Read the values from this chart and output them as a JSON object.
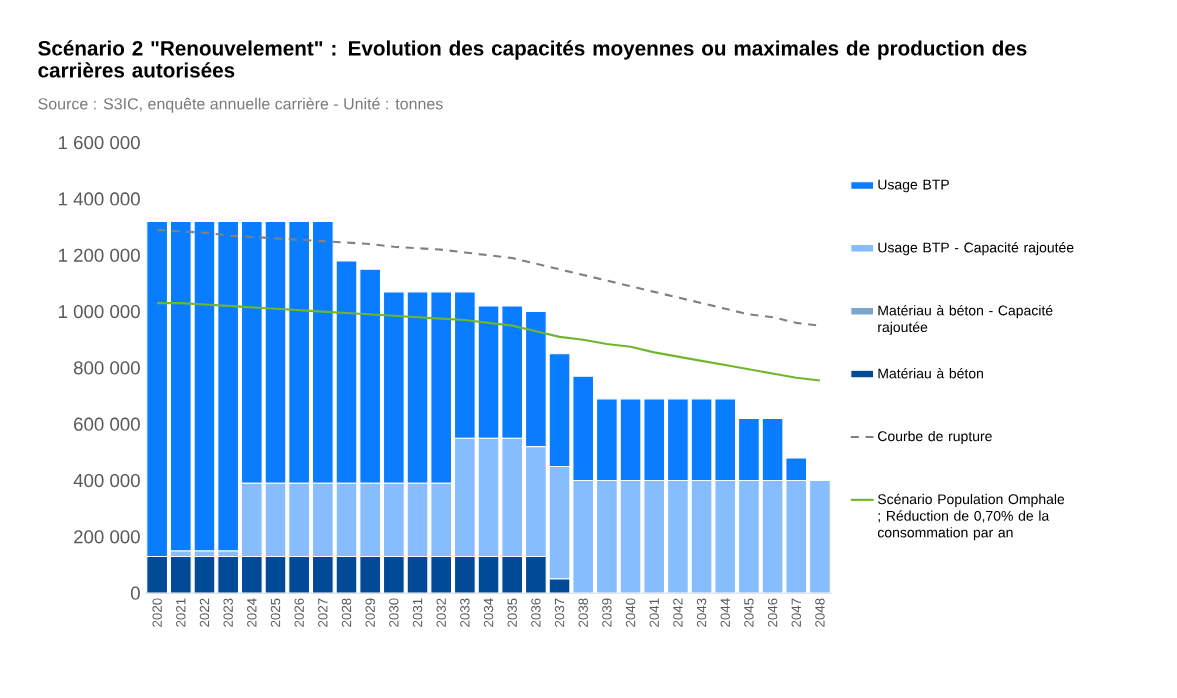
{
  "chart_data": {
    "type": "bar",
    "title": "Scénario 2 \"Renouvelement\" : Evolution des capacités moyennes ou maximales de production des carrières autorisées",
    "subtitle": "Source : S3IC, enquête annuelle carrière - Unité : tonnes",
    "categories": [
      "2020",
      "2021",
      "2022",
      "2023",
      "2024",
      "2025",
      "2026",
      "2027",
      "2028",
      "2029",
      "2030",
      "2031",
      "2032",
      "2033",
      "2034",
      "2035",
      "2036",
      "2037",
      "2038",
      "2039",
      "2040",
      "2041",
      "2042",
      "2043",
      "2044",
      "2045",
      "2046",
      "2047",
      "2048"
    ],
    "stacked": true,
    "series": [
      {
        "name": "Matériau à béton",
        "color": "#004a98",
        "values": [
          130000,
          130000,
          130000,
          130000,
          130000,
          130000,
          130000,
          130000,
          130000,
          130000,
          130000,
          130000,
          130000,
          130000,
          130000,
          130000,
          130000,
          50000,
          0,
          0,
          0,
          0,
          0,
          0,
          0,
          0,
          0,
          0,
          0
        ]
      },
      {
        "name": "Matériau à béton - Capacité rajoutée",
        "color": "#7fa4cb",
        "values": [
          0,
          0,
          0,
          0,
          0,
          0,
          0,
          0,
          0,
          0,
          0,
          0,
          0,
          0,
          0,
          0,
          0,
          0,
          0,
          0,
          0,
          0,
          0,
          0,
          0,
          0,
          0,
          0,
          0
        ]
      },
      {
        "name": "Usage BTP - Capacité rajoutée",
        "color": "#85bdff",
        "values": [
          0,
          20000,
          20000,
          20000,
          260000,
          260000,
          260000,
          260000,
          260000,
          260000,
          260000,
          260000,
          260000,
          420000,
          420000,
          420000,
          390000,
          400000,
          400000,
          400000,
          400000,
          400000,
          400000,
          400000,
          400000,
          400000,
          400000,
          400000,
          400000
        ]
      },
      {
        "name": "Usage BTP",
        "color": "#0a7cff",
        "values": [
          1190000,
          1170000,
          1170000,
          1170000,
          930000,
          930000,
          930000,
          930000,
          790000,
          760000,
          680000,
          680000,
          680000,
          520000,
          470000,
          470000,
          480000,
          400000,
          370000,
          290000,
          290000,
          290000,
          290000,
          290000,
          290000,
          220000,
          220000,
          80000,
          0
        ]
      },
      {
        "name": "Courbe de rupture",
        "type": "line",
        "line_style": "dashed",
        "color": "#808080",
        "values": [
          1290000,
          1285000,
          1280000,
          1270000,
          1265000,
          1260000,
          1255000,
          1250000,
          1245000,
          1240000,
          1230000,
          1225000,
          1220000,
          1210000,
          1200000,
          1190000,
          1170000,
          1150000,
          1130000,
          1110000,
          1090000,
          1070000,
          1050000,
          1030000,
          1010000,
          990000,
          980000,
          960000,
          950000
        ]
      },
      {
        "name": "Scénario Population Omphale ; Réduction de 0,70% de la consommation par an",
        "type": "line",
        "line_style": "solid",
        "color": "#70b62c",
        "values": [
          1030000,
          1030000,
          1025000,
          1020000,
          1015000,
          1010000,
          1005000,
          1000000,
          995000,
          990000,
          985000,
          980000,
          975000,
          970000,
          960000,
          950000,
          930000,
          910000,
          900000,
          885000,
          875000,
          855000,
          840000,
          825000,
          810000,
          795000,
          780000,
          765000,
          755000
        ]
      }
    ],
    "ylim": [
      0,
      1600000
    ],
    "yticks": [
      {
        "value": 0,
        "label": "0"
      },
      {
        "value": 200000,
        "label": "200 000"
      },
      {
        "value": 400000,
        "label": "400 000"
      },
      {
        "value": 600000,
        "label": "600 000"
      },
      {
        "value": 800000,
        "label": "800 000"
      },
      {
        "value": 1000000,
        "label": "1 000 000"
      },
      {
        "value": 1200000,
        "label": "1 200 000"
      },
      {
        "value": 1400000,
        "label": "1 400 000"
      },
      {
        "value": 1600000,
        "label": "1 600 000"
      }
    ],
    "grid": false,
    "legend": "right",
    "marker": "none"
  }
}
